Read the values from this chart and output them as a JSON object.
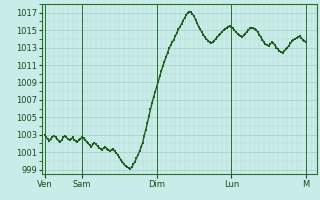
{
  "background_color": "#c8ece8",
  "plot_bg_color": "#c8ece8",
  "grid_color_major": "#b0d4cc",
  "grid_color_minor": "#c0ddd8",
  "line_color": "#1e5e1e",
  "marker_color": "#1e5e1e",
  "ylim": [
    998.5,
    1018
  ],
  "yticks": [
    999,
    1001,
    1003,
    1005,
    1007,
    1009,
    1011,
    1013,
    1015,
    1017
  ],
  "day_labels": [
    "Ven",
    "Sam",
    "Dim",
    "Lun",
    "M"
  ],
  "day_positions": [
    0,
    24,
    72,
    120,
    168
  ],
  "vline_positions": [
    0,
    24,
    72,
    120,
    168
  ],
  "xlim": [
    -2,
    175
  ],
  "x_values": [
    0,
    1,
    2,
    3,
    4,
    5,
    6,
    7,
    8,
    9,
    10,
    11,
    12,
    13,
    14,
    15,
    16,
    17,
    18,
    19,
    20,
    21,
    22,
    23,
    24,
    25,
    26,
    27,
    28,
    29,
    30,
    31,
    32,
    33,
    34,
    35,
    36,
    37,
    38,
    39,
    40,
    41,
    42,
    43,
    44,
    45,
    46,
    47,
    48,
    49,
    50,
    51,
    52,
    53,
    54,
    55,
    56,
    57,
    58,
    59,
    60,
    61,
    62,
    63,
    64,
    65,
    66,
    67,
    68,
    69,
    70,
    71,
    72,
    73,
    74,
    75,
    76,
    77,
    78,
    79,
    80,
    81,
    82,
    83,
    84,
    85,
    86,
    87,
    88,
    89,
    90,
    91,
    92,
    93,
    94,
    95,
    96,
    97,
    98,
    99,
    100,
    101,
    102,
    103,
    104,
    105,
    106,
    107,
    108,
    109,
    110,
    111,
    112,
    113,
    114,
    115,
    116,
    117,
    118,
    119,
    120,
    121,
    122,
    123,
    124,
    125,
    126,
    127,
    128,
    129,
    130,
    131,
    132,
    133,
    134,
    135,
    136,
    137,
    138,
    139,
    140,
    141,
    142,
    143,
    144,
    145,
    146,
    147,
    148,
    149,
    150,
    151,
    152,
    153,
    154,
    155,
    156,
    157,
    158,
    159,
    160,
    161,
    162,
    163,
    164,
    165,
    166,
    167,
    168,
    169,
    170,
    171,
    172
  ],
  "y_values": [
    1003.0,
    1002.7,
    1002.5,
    1002.3,
    1002.5,
    1002.8,
    1002.9,
    1002.7,
    1002.5,
    1002.3,
    1002.2,
    1002.4,
    1002.7,
    1002.9,
    1002.7,
    1002.5,
    1002.4,
    1002.5,
    1002.7,
    1002.4,
    1002.3,
    1002.2,
    1002.4,
    1002.5,
    1002.8,
    1002.6,
    1002.4,
    1002.2,
    1002.0,
    1001.8,
    1001.6,
    1001.9,
    1002.1,
    1001.9,
    1001.7,
    1001.5,
    1001.4,
    1001.3,
    1001.5,
    1001.6,
    1001.4,
    1001.3,
    1001.1,
    1001.3,
    1001.4,
    1001.1,
    1000.9,
    1000.7,
    1000.4,
    1000.1,
    999.9,
    999.6,
    999.4,
    999.3,
    999.2,
    999.1,
    999.3,
    999.6,
    999.9,
    1000.3,
    1000.7,
    1001.1,
    1001.6,
    1002.1,
    1002.9,
    1003.6,
    1004.3,
    1005.1,
    1005.9,
    1006.6,
    1007.3,
    1007.9,
    1008.5,
    1009.1,
    1009.7,
    1010.3,
    1010.9,
    1011.4,
    1011.9,
    1012.4,
    1012.9,
    1013.3,
    1013.6,
    1013.9,
    1014.3,
    1014.7,
    1015.1,
    1015.4,
    1015.7,
    1016.1,
    1016.4,
    1016.7,
    1017.0,
    1017.1,
    1017.05,
    1016.85,
    1016.6,
    1016.2,
    1015.8,
    1015.4,
    1015.1,
    1014.8,
    1014.5,
    1014.2,
    1014.0,
    1013.8,
    1013.6,
    1013.5,
    1013.6,
    1013.8,
    1014.0,
    1014.2,
    1014.4,
    1014.6,
    1014.8,
    1015.0,
    1015.1,
    1015.3,
    1015.4,
    1015.5,
    1015.4,
    1015.2,
    1015.0,
    1014.8,
    1014.6,
    1014.4,
    1014.3,
    1014.2,
    1014.4,
    1014.6,
    1014.8,
    1015.0,
    1015.2,
    1015.3,
    1015.2,
    1015.1,
    1015.0,
    1014.8,
    1014.5,
    1014.2,
    1013.9,
    1013.6,
    1013.4,
    1013.3,
    1013.2,
    1013.4,
    1013.6,
    1013.5,
    1013.3,
    1013.0,
    1012.8,
    1012.6,
    1012.5,
    1012.4,
    1012.6,
    1012.8,
    1013.0,
    1013.2,
    1013.5,
    1013.7,
    1013.9,
    1014.0,
    1014.1,
    1014.2,
    1014.3,
    1014.1,
    1013.9,
    1013.8,
    1013.6
  ],
  "marker_size": 1.8,
  "line_width": 1.0
}
